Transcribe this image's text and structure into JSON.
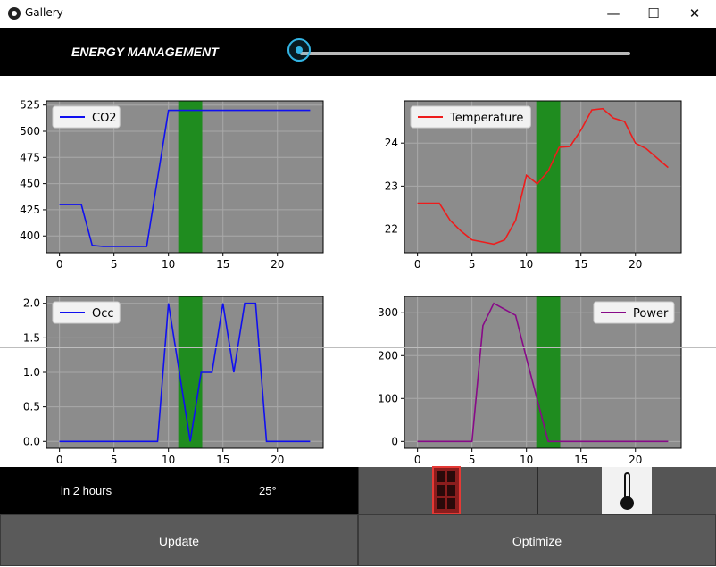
{
  "window": {
    "title": "Gallery",
    "controls": [
      "minimize",
      "maximize",
      "close"
    ]
  },
  "header": {
    "title": "ENERGY MANAGEMENT",
    "slider_value": 0
  },
  "info": {
    "time_text": "in 2 hours",
    "temp_text": "25°"
  },
  "buttons": {
    "update": "Update",
    "optimize": "Optimize"
  },
  "colors": {
    "plot_bg": "#8c8c8c",
    "highlight": "#1f8c1f",
    "blue": "#1010f0",
    "red": "#ee1c1c",
    "purple": "#880a88"
  },
  "chart_data": [
    {
      "type": "line",
      "x": [
        0,
        1,
        2,
        3,
        4,
        5,
        6,
        7,
        8,
        9,
        10,
        11,
        12,
        13,
        14,
        15,
        16,
        17,
        18,
        19,
        20,
        21,
        22,
        23
      ],
      "series": [
        {
          "name": "CO2",
          "color": "#1010f0",
          "values": [
            430,
            430,
            430,
            391,
            390,
            390,
            390,
            390,
            390,
            455,
            520,
            520,
            520,
            520,
            520,
            520,
            520,
            520,
            520,
            520,
            520,
            520,
            520,
            520
          ]
        }
      ],
      "xlim": [
        -1.2,
        24.2
      ],
      "ylim": [
        384,
        529
      ],
      "xticks": [
        0,
        5,
        10,
        15,
        20
      ],
      "yticks": [
        400,
        425,
        450,
        475,
        500,
        525
      ],
      "highlight_span": [
        10.9,
        13.1
      ],
      "legend": "top-left",
      "grid": true
    },
    {
      "type": "line",
      "x": [
        0,
        1,
        2,
        3,
        4,
        5,
        6,
        7,
        8,
        9,
        10,
        11,
        12,
        13,
        14,
        15,
        16,
        17,
        18,
        19,
        20,
        21,
        22,
        23
      ],
      "series": [
        {
          "name": "Temperature",
          "color": "#ee1c1c",
          "values": [
            22.6,
            22.6,
            22.6,
            22.2,
            21.95,
            21.75,
            21.7,
            21.65,
            21.75,
            22.2,
            23.25,
            23.05,
            23.35,
            23.9,
            23.92,
            24.3,
            24.77,
            24.8,
            24.58,
            24.5,
            24.0,
            23.87,
            23.65,
            23.43
          ]
        }
      ],
      "xlim": [
        -1.2,
        24.2
      ],
      "ylim": [
        21.45,
        24.98
      ],
      "xticks": [
        0,
        5,
        10,
        15,
        20
      ],
      "yticks": [
        22,
        23,
        24
      ],
      "highlight_span": [
        10.9,
        13.1
      ],
      "legend": "top-left",
      "grid": true
    },
    {
      "type": "line",
      "x": [
        0,
        1,
        2,
        3,
        4,
        5,
        6,
        7,
        8,
        9,
        10,
        11,
        12,
        13,
        14,
        15,
        16,
        17,
        18,
        19,
        20,
        21,
        22,
        23
      ],
      "series": [
        {
          "name": "Occ",
          "color": "#1010f0",
          "values": [
            0,
            0,
            0,
            0,
            0,
            0,
            0,
            0,
            0,
            0,
            2,
            1,
            0,
            1,
            1,
            2,
            1,
            2,
            2,
            0,
            0,
            0,
            0,
            0
          ]
        }
      ],
      "xlim": [
        -1.2,
        24.2
      ],
      "ylim": [
        -0.1,
        2.1
      ],
      "xticks": [
        0,
        5,
        10,
        15,
        20
      ],
      "yticks": [
        0.0,
        0.5,
        1.0,
        1.5,
        2.0
      ],
      "highlight_span": [
        10.9,
        13.1
      ],
      "legend": "top-left",
      "grid": true
    },
    {
      "type": "line",
      "x": [
        0,
        1,
        2,
        3,
        4,
        5,
        6,
        7,
        8,
        9,
        10,
        11,
        12,
        13,
        14,
        15,
        16,
        17,
        18,
        19,
        20,
        21,
        22,
        23
      ],
      "series": [
        {
          "name": "Power",
          "color": "#880a88",
          "values": [
            0,
            0,
            0,
            0,
            0,
            0,
            270,
            322,
            308,
            294,
            194,
            96,
            0,
            0,
            0,
            0,
            0,
            0,
            0,
            0,
            0,
            0,
            0,
            0
          ]
        }
      ],
      "xlim": [
        -1.2,
        24.2
      ],
      "ylim": [
        -16,
        338
      ],
      "xticks": [
        0,
        5,
        10,
        15,
        20
      ],
      "yticks": [
        0,
        100,
        200,
        300
      ],
      "highlight_span": [
        10.9,
        13.1
      ],
      "legend": "top-right",
      "grid": true
    }
  ]
}
